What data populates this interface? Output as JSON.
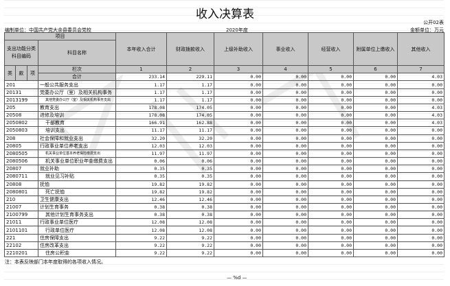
{
  "title": "收入决算表",
  "form_code": "公开02表",
  "unit": "编制单位：中国共产党大余县委员会党校",
  "year": "2020年度",
  "amount_unit": "金额单位：万元",
  "header": {
    "item": "项目",
    "code_group": "支出功能分类科目编码",
    "name": "科目名称",
    "lei": "类",
    "kuan": "款",
    "xiang": "项",
    "lanci": "栏次",
    "columns": [
      "本年收入合计",
      "财政拨款收入",
      "上级补助收入",
      "事业收入",
      "经营收入",
      "附属单位上缴收入",
      "其他收入"
    ],
    "column_numbers": [
      "1",
      "2",
      "3",
      "4",
      "5",
      "6",
      "7"
    ]
  },
  "total": {
    "label": "合计",
    "values": [
      "233.14",
      "229.11",
      "0.00",
      "0.00",
      "0.00",
      "0.00",
      "4.03"
    ]
  },
  "rows": [
    {
      "code": "201",
      "name": "一般公共服务支出",
      "level": 0,
      "values": [
        "1.17",
        "1.17",
        "0.00",
        "0.00",
        "0.00",
        "0.00",
        "0.00"
      ]
    },
    {
      "code": "20131",
      "name": "党委办公厅（室）及相关机构事务",
      "level": 0,
      "values": [
        "1.17",
        "1.17",
        "0.00",
        "0.00",
        "0.00",
        "0.00",
        "0.00"
      ]
    },
    {
      "code": "2013199",
      "name": "其他党委办公厅（室）及相关机构事务支出",
      "level": 1,
      "small": true,
      "values": [
        "1.17",
        "1.17",
        "0.00",
        "0.00",
        "0.00",
        "0.00",
        "0.00"
      ]
    },
    {
      "code": "205",
      "name": "教育支出",
      "level": 0,
      "values": [
        "178.08",
        "174.05",
        "0.00",
        "0.00",
        "0.00",
        "0.00",
        "4.03"
      ]
    },
    {
      "code": "20508",
      "name": "进修及培训",
      "level": 0,
      "values": [
        "178.08",
        "174.05",
        "0.00",
        "0.00",
        "0.00",
        "0.00",
        "4.03"
      ]
    },
    {
      "code": "2050802",
      "name": "干部教育",
      "level": 1,
      "values": [
        "166.91",
        "162.88",
        "0.00",
        "0.00",
        "0.00",
        "0.00",
        "4.03"
      ]
    },
    {
      "code": "2050803",
      "name": "培训支出",
      "level": 1,
      "values": [
        "11.17",
        "11.17",
        "0.00",
        "0.00",
        "0.00",
        "0.00",
        "0.00"
      ]
    },
    {
      "code": "208",
      "name": "社会保障和就业支出",
      "level": 0,
      "values": [
        "32.20",
        "32.20",
        "0.00",
        "0.00",
        "0.00",
        "0.00",
        "0.00"
      ]
    },
    {
      "code": "20805",
      "name": "行政事业单位养老支出",
      "level": 0,
      "values": [
        "12.03",
        "12.03",
        "0.00",
        "0.00",
        "0.00",
        "0.00",
        "0.00"
      ]
    },
    {
      "code": "2080505",
      "name": "机关事业单位基本养老保险缴费支出",
      "level": 1,
      "small": true,
      "values": [
        "11.97",
        "11.97",
        "0.00",
        "0.00",
        "0.00",
        "0.00",
        "0.00"
      ]
    },
    {
      "code": "2080506",
      "name": "机关事业单位职业年金缴费支出",
      "level": 1,
      "values": [
        "0.06",
        "0.06",
        "0.00",
        "0.00",
        "0.00",
        "0.00",
        "0.00"
      ]
    },
    {
      "code": "20807",
      "name": "就业补助",
      "level": 0,
      "values": [
        "0.35",
        "0.35",
        "0.00",
        "0.00",
        "0.00",
        "0.00",
        "0.00"
      ]
    },
    {
      "code": "2080711",
      "name": "就业见习补贴",
      "level": 1,
      "values": [
        "0.35",
        "0.35",
        "0.00",
        "0.00",
        "0.00",
        "0.00",
        "0.00"
      ]
    },
    {
      "code": "20808",
      "name": "抚恤",
      "level": 0,
      "values": [
        "19.82",
        "19.82",
        "0.00",
        "0.00",
        "0.00",
        "0.00",
        "0.00"
      ]
    },
    {
      "code": "2080801",
      "name": "死亡抚恤",
      "level": 1,
      "values": [
        "19.82",
        "19.82",
        "0.00",
        "0.00",
        "0.00",
        "0.00",
        "0.00"
      ]
    },
    {
      "code": "210",
      "name": "卫生健康支出",
      "level": 0,
      "values": [
        "12.46",
        "12.46",
        "0.00",
        "0.00",
        "0.00",
        "0.00",
        "0.00"
      ]
    },
    {
      "code": "21007",
      "name": "计划生育事务",
      "level": 0,
      "values": [
        "0.38",
        "0.38",
        "0.00",
        "0.00",
        "0.00",
        "0.00",
        "0.00"
      ]
    },
    {
      "code": "2100799",
      "name": "其他计划生育事务支出",
      "level": 1,
      "values": [
        "0.38",
        "0.38",
        "0.00",
        "0.00",
        "0.00",
        "0.00",
        "0.00"
      ]
    },
    {
      "code": "21011",
      "name": "行政事业单位医疗",
      "level": 0,
      "values": [
        "12.08",
        "12.08",
        "0.00",
        "0.00",
        "0.00",
        "0.00",
        "0.00"
      ]
    },
    {
      "code": "2101101",
      "name": "行政单位医疗",
      "level": 1,
      "values": [
        "12.08",
        "12.08",
        "0.00",
        "0.00",
        "0.00",
        "0.00",
        "0.00"
      ]
    },
    {
      "code": "221",
      "name": "住房保障支出",
      "level": 0,
      "values": [
        "9.22",
        "9.22",
        "0.00",
        "0.00",
        "0.00",
        "0.00",
        "0.00"
      ]
    },
    {
      "code": "22102",
      "name": "住房改革支出",
      "level": 0,
      "values": [
        "9.22",
        "9.22",
        "0.00",
        "0.00",
        "0.00",
        "0.00",
        "0.00"
      ]
    },
    {
      "code": "2210201",
      "name": "住房公积金",
      "level": 1,
      "values": [
        "9.22",
        "9.22",
        "0.00",
        "0.00",
        "0.00",
        "0.00",
        "0.00"
      ]
    }
  ],
  "note": "注：本表反映部门本年度取得的各项收入情况。",
  "page_footer": "— %d —"
}
